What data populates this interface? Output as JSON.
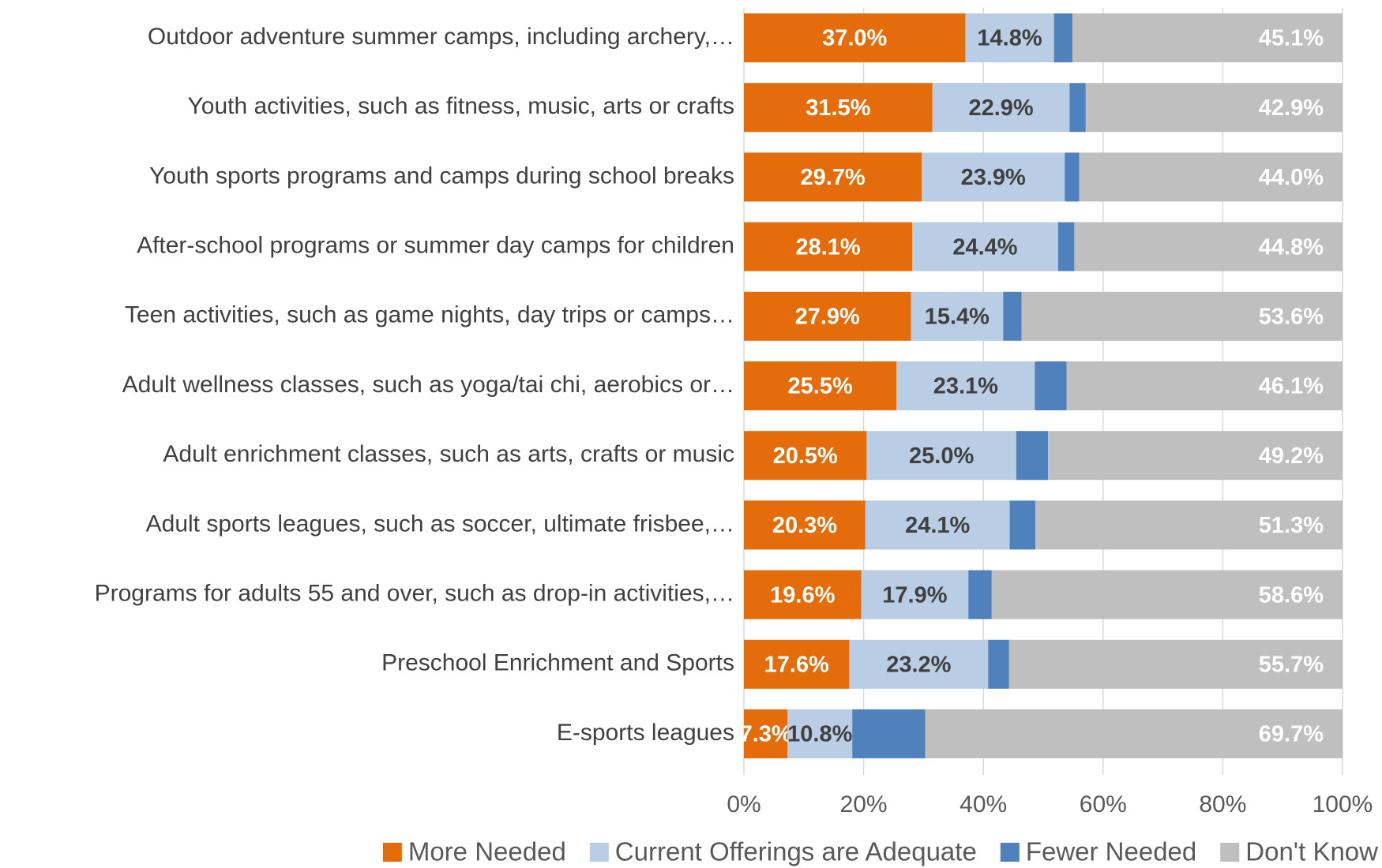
{
  "chart_data": {
    "type": "stacked-bar-horizontal",
    "categories": [
      "Outdoor adventure summer camps, including archery,…",
      "Youth activities, such as fitness, music, arts or crafts",
      "Youth sports programs and camps during school breaks",
      "After-school programs or summer day camps for children",
      "Teen activities, such as game nights, day trips or camps…",
      "Adult wellness classes, such as yoga/tai chi, aerobics or…",
      "Adult enrichment classes, such as arts, crafts or music",
      "Adult sports leagues, such as soccer, ultimate frisbee,…",
      "Programs for adults 55 and over, such as drop-in activities,…",
      "Preschool Enrichment and Sports",
      "E-sports leagues"
    ],
    "series": [
      {
        "name": "More Needed",
        "color": "#E46C0A",
        "label_color": "#FFFFFF",
        "values": [
          37.0,
          31.5,
          29.7,
          28.1,
          27.9,
          25.5,
          20.5,
          20.3,
          19.6,
          17.6,
          7.3
        ],
        "value_labels": [
          "37.0%",
          "31.5%",
          "29.7%",
          "28.1%",
          "27.9%",
          "25.5%",
          "20.5%",
          "20.3%",
          "19.6%",
          "17.6%",
          "7.3%"
        ]
      },
      {
        "name": "Current Offerings are Adequate",
        "color": "#B9CDE5",
        "label_color": "#404040",
        "values": [
          14.8,
          22.9,
          23.9,
          24.4,
          15.4,
          23.1,
          25.0,
          24.1,
          17.9,
          23.2,
          10.8
        ],
        "value_labels": [
          "14.8%",
          "22.9%",
          "23.9%",
          "24.4%",
          "15.4%",
          "23.1%",
          "25.0%",
          "24.1%",
          "17.9%",
          "23.2%",
          "10.8%"
        ]
      },
      {
        "name": "Fewer Needed",
        "color": "#4F81BD",
        "values": [
          3.1,
          2.7,
          2.4,
          2.7,
          3.1,
          5.3,
          5.3,
          4.3,
          3.9,
          3.5,
          12.2
        ]
      },
      {
        "name": "Don't Know",
        "color": "#BFBFBF",
        "label_color": "#FFFFFF",
        "values": [
          45.1,
          42.9,
          44.0,
          44.8,
          53.6,
          46.1,
          49.2,
          51.3,
          58.6,
          55.7,
          69.7
        ],
        "value_labels": [
          "45.1%",
          "42.9%",
          "44.0%",
          "44.8%",
          "53.6%",
          "46.1%",
          "49.2%",
          "51.3%",
          "58.6%",
          "55.7%",
          "69.7%"
        ]
      }
    ],
    "xlim": [
      0,
      100
    ],
    "xticks": [
      {
        "value": 0,
        "label": "0%"
      },
      {
        "value": 20,
        "label": "20%"
      },
      {
        "value": 40,
        "label": "40%"
      },
      {
        "value": 60,
        "label": "60%"
      },
      {
        "value": 80,
        "label": "80%"
      },
      {
        "value": 100,
        "label": "100%"
      }
    ],
    "grid": true,
    "legend": "bottom"
  }
}
